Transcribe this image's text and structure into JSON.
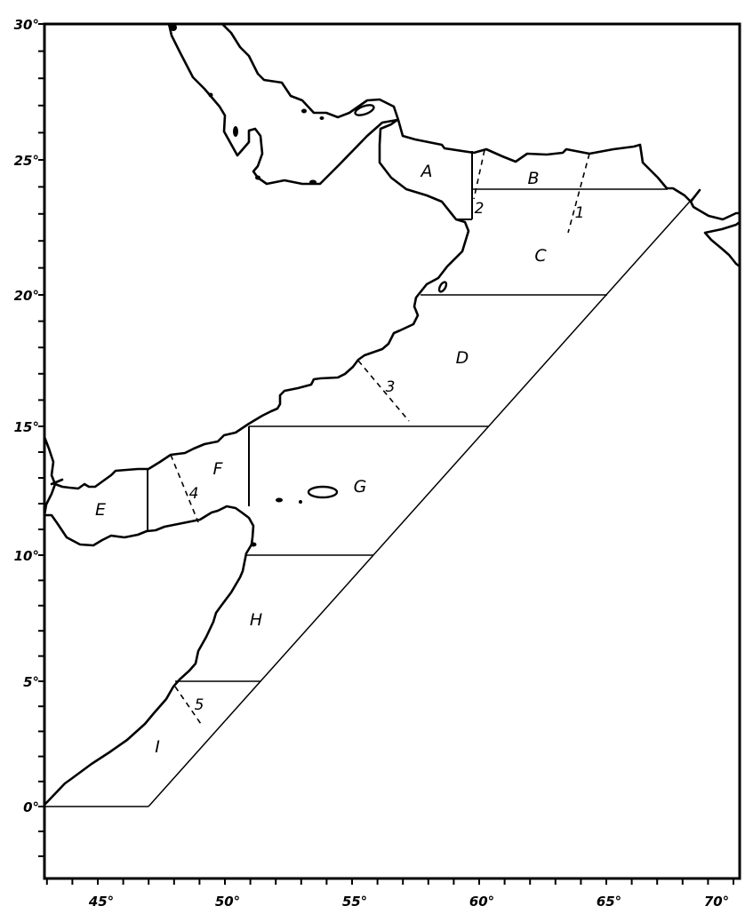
{
  "map": {
    "y_axis_labels": [
      "30°",
      "25°",
      "20°",
      "15°",
      "10°",
      "5°",
      "0°"
    ],
    "y_axis_values": [
      30,
      25,
      20,
      15,
      10,
      5,
      0
    ],
    "x_axis_labels": [
      "45°",
      "50°",
      "55°",
      "60°",
      "65°",
      "70°"
    ],
    "x_axis_values": [
      45,
      50,
      55,
      60,
      65,
      70
    ],
    "lat_range": [
      -2.7,
      30
    ],
    "lon_range": [
      42.9,
      70.3
    ],
    "zones": [
      "A",
      "B",
      "C",
      "D",
      "E",
      "F",
      "G",
      "H",
      "I"
    ],
    "subareas": [
      "1",
      "2",
      "3",
      "4",
      "5"
    ],
    "line_color": "#000000",
    "background": "#ffffff"
  }
}
